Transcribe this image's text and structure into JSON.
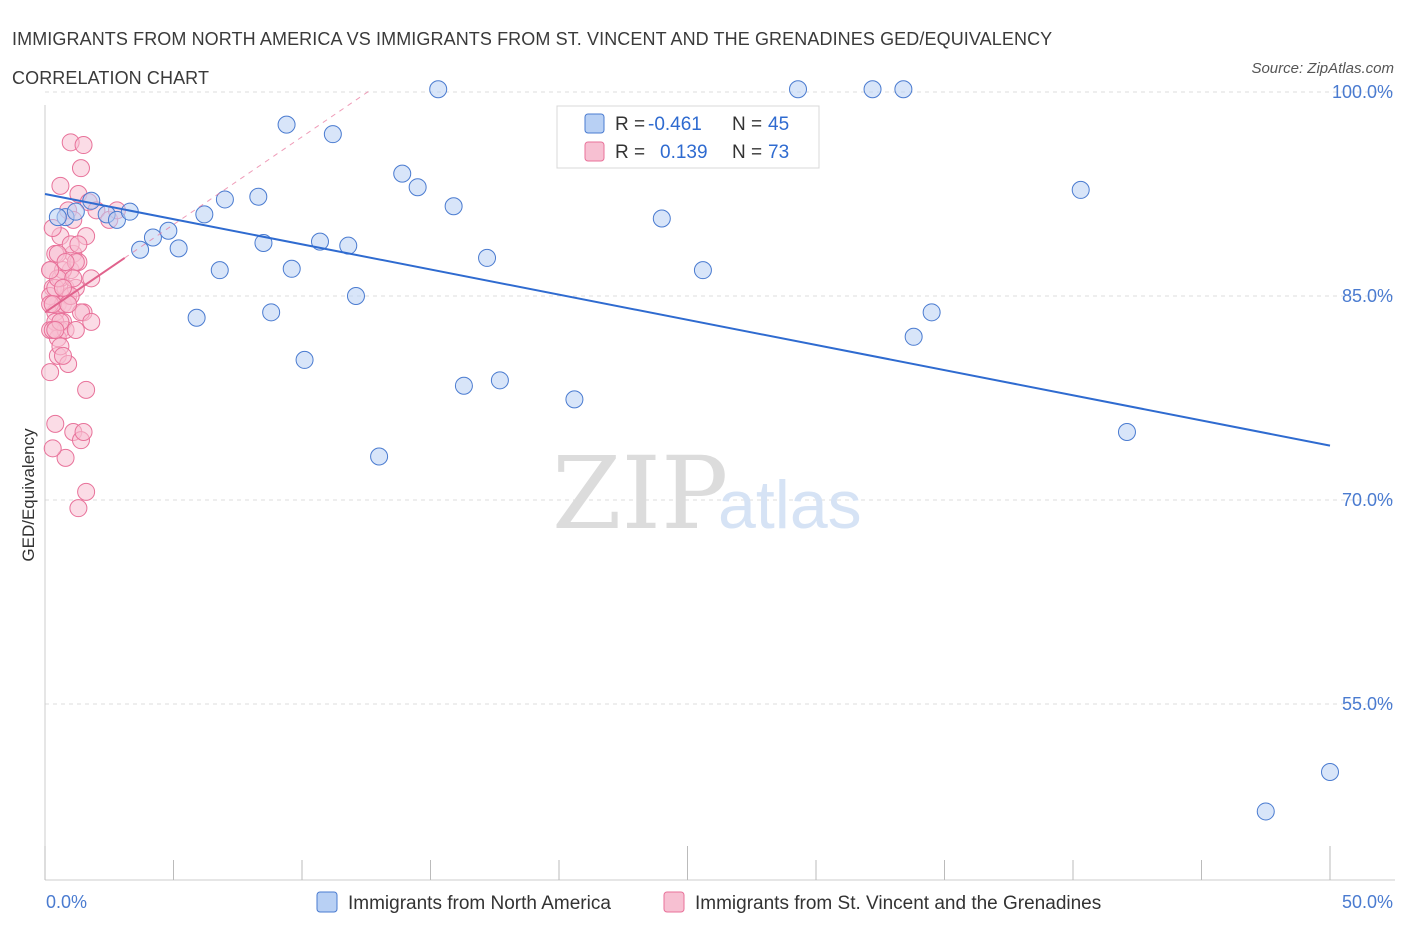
{
  "title": "IMMIGRANTS FROM NORTH AMERICA VS IMMIGRANTS FROM ST. VINCENT AND THE GRENADINES GED/EQUIVALENCY CORRELATION CHART",
  "source": "Source: ZipAtlas.com",
  "watermark": {
    "zip": "ZIP",
    "atlas": "atlas"
  },
  "colors": {
    "blue": "#4a7bd0",
    "blue_fill": "#b8d0f4",
    "blue_line": "#2f6bd0",
    "pink": "#e8729a",
    "pink_fill": "#f7c0d2",
    "pink_line": "#e0628c",
    "grid": "#dddddd"
  },
  "legend": {
    "rows": [
      {
        "r_label": "R =",
        "r_value": "-0.461",
        "n_label": "N =",
        "n_value": "45"
      },
      {
        "r_label": "R =",
        "r_value": "0.139",
        "n_label": "N =",
        "n_value": "73"
      }
    ]
  },
  "chart_data": {
    "type": "scatter",
    "xlabel": "",
    "ylabel": "GED/Equivalency",
    "xlim": [
      0,
      50
    ],
    "ylim": [
      40,
      101
    ],
    "x_tick_labels": [
      {
        "value": 0,
        "label": "0.0%"
      },
      {
        "value": 50,
        "label": "50.0%"
      }
    ],
    "y_tick_labels": [
      {
        "value": 100,
        "label": "100.0%"
      },
      {
        "value": 85,
        "label": "85.0%"
      },
      {
        "value": 70,
        "label": "70.0%"
      },
      {
        "value": 55,
        "label": "55.0%"
      }
    ],
    "grid": true,
    "legend_placement": "bottom",
    "series": [
      {
        "name": "Immigrants from North America",
        "color": "#4a7bd0",
        "trend": {
          "x": [
            0,
            50
          ],
          "y": [
            92.5,
            74.0
          ]
        },
        "points": [
          [
            0.8,
            90.8
          ],
          [
            1.2,
            91.2
          ],
          [
            1.8,
            92.0
          ],
          [
            2.4,
            91.0
          ],
          [
            2.8,
            90.6
          ],
          [
            3.3,
            91.2
          ],
          [
            3.7,
            88.4
          ],
          [
            4.2,
            89.3
          ],
          [
            4.8,
            89.8
          ],
          [
            5.2,
            88.5
          ],
          [
            5.9,
            83.4
          ],
          [
            6.2,
            91.0
          ],
          [
            6.8,
            86.9
          ],
          [
            7.0,
            92.1
          ],
          [
            8.3,
            92.3
          ],
          [
            8.5,
            88.9
          ],
          [
            8.8,
            83.8
          ],
          [
            9.4,
            97.6
          ],
          [
            9.6,
            87.0
          ],
          [
            10.1,
            80.3
          ],
          [
            10.7,
            89.0
          ],
          [
            11.2,
            96.9
          ],
          [
            11.8,
            88.7
          ],
          [
            12.1,
            85.0
          ],
          [
            13.0,
            73.2
          ],
          [
            13.9,
            94.0
          ],
          [
            14.5,
            93.0
          ],
          [
            15.3,
            100.2
          ],
          [
            15.9,
            91.6
          ],
          [
            16.3,
            78.4
          ],
          [
            17.2,
            87.8
          ],
          [
            17.7,
            78.8
          ],
          [
            20.6,
            77.4
          ],
          [
            24.0,
            90.7
          ],
          [
            25.6,
            86.9
          ],
          [
            29.3,
            100.2
          ],
          [
            32.2,
            100.2
          ],
          [
            33.4,
            100.2
          ],
          [
            33.8,
            82.0
          ],
          [
            34.5,
            83.8
          ],
          [
            40.3,
            92.8
          ],
          [
            42.1,
            75.0
          ],
          [
            47.5,
            47.1
          ],
          [
            50.0,
            50.0
          ],
          [
            0.5,
            90.8
          ]
        ]
      },
      {
        "name": "Immigrants from St. Vincent and the Grenadines",
        "color": "#e8729a",
        "trend": {
          "x": [
            0,
            3.1
          ],
          "y": [
            83.8,
            87.8
          ]
        },
        "points": [
          [
            0.3,
            85.6
          ],
          [
            0.5,
            84.4
          ],
          [
            0.2,
            86.9
          ],
          [
            0.7,
            83.1
          ],
          [
            0.4,
            88.1
          ],
          [
            0.9,
            85.0
          ],
          [
            0.6,
            82.5
          ],
          [
            0.3,
            84.4
          ],
          [
            1.0,
            86.9
          ],
          [
            0.8,
            85.6
          ],
          [
            0.2,
            82.5
          ],
          [
            0.5,
            80.6
          ],
          [
            1.1,
            88.1
          ],
          [
            0.6,
            89.4
          ],
          [
            0.4,
            83.8
          ],
          [
            0.9,
            91.3
          ],
          [
            0.2,
            85.0
          ],
          [
            1.3,
            87.5
          ],
          [
            0.7,
            84.4
          ],
          [
            0.5,
            81.9
          ],
          [
            0.3,
            90.0
          ],
          [
            1.0,
            88.8
          ],
          [
            0.6,
            86.3
          ],
          [
            0.4,
            83.1
          ],
          [
            0.8,
            82.5
          ],
          [
            1.2,
            85.6
          ],
          [
            0.2,
            84.4
          ],
          [
            0.9,
            80.0
          ],
          [
            1.5,
            83.8
          ],
          [
            0.6,
            93.1
          ],
          [
            1.0,
            96.3
          ],
          [
            1.4,
            94.4
          ],
          [
            1.5,
            96.1
          ],
          [
            1.3,
            92.5
          ],
          [
            1.1,
            90.6
          ],
          [
            1.7,
            91.9
          ],
          [
            2.0,
            91.3
          ],
          [
            2.5,
            90.6
          ],
          [
            2.8,
            91.3
          ],
          [
            0.5,
            88.1
          ],
          [
            0.7,
            86.9
          ],
          [
            1.2,
            87.5
          ],
          [
            1.6,
            89.4
          ],
          [
            0.4,
            85.6
          ],
          [
            0.9,
            84.4
          ],
          [
            0.3,
            82.5
          ],
          [
            1.4,
            83.8
          ],
          [
            1.8,
            86.3
          ],
          [
            0.6,
            81.3
          ],
          [
            0.2,
            79.4
          ],
          [
            0.4,
            75.6
          ],
          [
            1.1,
            75.0
          ],
          [
            1.4,
            74.4
          ],
          [
            1.6,
            78.1
          ],
          [
            0.8,
            73.1
          ],
          [
            1.6,
            70.6
          ],
          [
            1.3,
            69.4
          ],
          [
            1.5,
            75.0
          ],
          [
            0.3,
            73.8
          ],
          [
            1.8,
            83.1
          ],
          [
            1.2,
            82.5
          ],
          [
            0.7,
            80.6
          ],
          [
            0.5,
            86.3
          ],
          [
            1.0,
            85.0
          ],
          [
            0.3,
            84.4
          ],
          [
            0.6,
            83.1
          ],
          [
            0.8,
            87.5
          ],
          [
            1.3,
            88.8
          ],
          [
            0.4,
            82.5
          ],
          [
            1.1,
            86.3
          ],
          [
            0.9,
            84.4
          ],
          [
            0.2,
            86.9
          ],
          [
            0.7,
            85.6
          ]
        ]
      }
    ]
  }
}
